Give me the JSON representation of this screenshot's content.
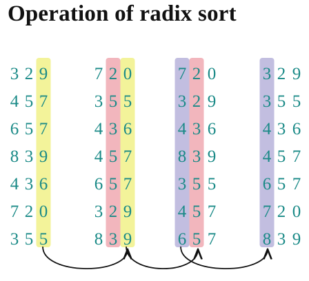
{
  "title": "Operation of radix sort",
  "colors": {
    "digit": "#1a8a87",
    "yellow": "#f3f39a",
    "pink": "#f2b6bd",
    "lavender": "#c2bee0",
    "arrow": "#111111",
    "title": "#111111"
  },
  "columns": [
    {
      "name": "input",
      "numbers": [
        "329",
        "457",
        "657",
        "839",
        "436",
        "720",
        "355"
      ]
    },
    {
      "name": "after-pass-1",
      "numbers": [
        "720",
        "355",
        "436",
        "457",
        "657",
        "329",
        "839"
      ]
    },
    {
      "name": "after-pass-2",
      "numbers": [
        "720",
        "329",
        "436",
        "839",
        "355",
        "457",
        "657"
      ]
    },
    {
      "name": "after-pass-3",
      "numbers": [
        "329",
        "355",
        "436",
        "457",
        "657",
        "720",
        "839"
      ]
    }
  ],
  "highlights": [
    {
      "column": 0,
      "digit": 2,
      "color": "yellow"
    },
    {
      "column": 1,
      "digit": 1,
      "color": "pink"
    },
    {
      "column": 1,
      "digit": 2,
      "color": "yellow"
    },
    {
      "column": 2,
      "digit": 0,
      "color": "lavender"
    },
    {
      "column": 2,
      "digit": 1,
      "color": "pink"
    },
    {
      "column": 3,
      "digit": 0,
      "color": "lavender"
    }
  ],
  "arrows": [
    {
      "from": 0,
      "to": 1
    },
    {
      "from": 1,
      "to": 2
    },
    {
      "from": 2,
      "to": 3
    }
  ]
}
